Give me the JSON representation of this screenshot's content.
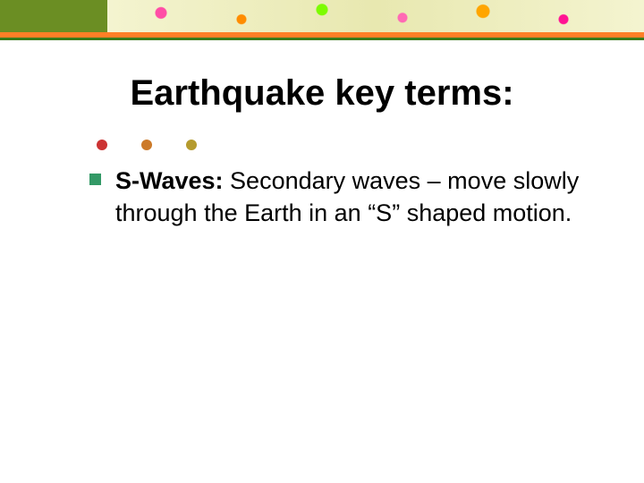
{
  "slide": {
    "title": "Earthquake key terms:",
    "accent_color": "#ff7f27",
    "accent_shadow_color": "#3a7a1a",
    "top_left_block_color": "#6b8e23",
    "dots": [
      {
        "color": "#cc3333"
      },
      {
        "color": "#cc7a29"
      },
      {
        "color": "#b59b2e"
      }
    ],
    "bullet": {
      "square_color": "#339966",
      "term": "S-Waves:",
      "definition": " Secondary waves – move slowly through the Earth in an “S” shaped motion."
    }
  }
}
